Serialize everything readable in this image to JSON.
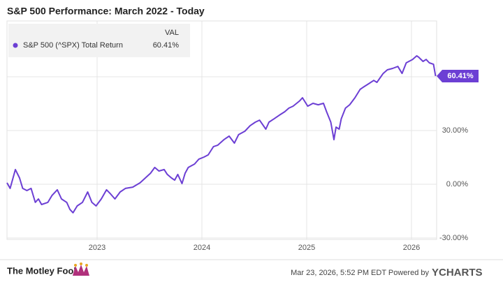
{
  "chart_data": {
    "type": "line",
    "title": "S&P 500 Performance: March 2022 - Today",
    "legend_header": "VAL",
    "last_value_label": "60.41%",
    "footer_brand": "The Motley Fool",
    "footer_timestamp": "Mar 23, 2026, 5:52 PM EDT Powered by",
    "footer_source": "YCHARTS",
    "xlim": [
      2022.14,
      2026.24
    ],
    "xticks": [
      2023,
      2024,
      2025,
      2026
    ],
    "ylim": [
      -30.8,
      91.2
    ],
    "yticks": [
      {
        "value": 30,
        "label": "30.00%"
      },
      {
        "value": 0,
        "label": "0.00%"
      },
      {
        "value": -30,
        "label": "-30.00%"
      }
    ],
    "gridlines": [
      -30,
      0,
      30,
      60
    ],
    "grid": true,
    "series": [
      {
        "name": "S&P 500 (^SPX) Total Return",
        "color": "#6c3fd4",
        "x": [
          2022.14,
          2022.17,
          2022.22,
          2022.26,
          2022.29,
          2022.33,
          2022.37,
          2022.41,
          2022.44,
          2022.47,
          2022.53,
          2022.57,
          2022.62,
          2022.66,
          2022.71,
          2022.74,
          2022.77,
          2022.81,
          2022.86,
          2022.91,
          2022.95,
          2022.99,
          2023.04,
          2023.09,
          2023.13,
          2023.17,
          2023.22,
          2023.27,
          2023.34,
          2023.41,
          2023.46,
          2023.51,
          2023.55,
          2023.59,
          2023.64,
          2023.67,
          2023.71,
          2023.74,
          2023.77,
          2023.81,
          2023.84,
          2023.87,
          2023.93,
          2023.97,
          2024.02,
          2024.06,
          2024.11,
          2024.15,
          2024.21,
          2024.26,
          2024.31,
          2024.35,
          2024.41,
          2024.46,
          2024.51,
          2024.55,
          2024.61,
          2024.64,
          2024.69,
          2024.74,
          2024.79,
          2024.83,
          2024.87,
          2024.93,
          2024.96,
          2025.01,
          2025.06,
          2025.11,
          2025.16,
          2025.19,
          2025.23,
          2025.26,
          2025.28,
          2025.31,
          2025.33,
          2025.37,
          2025.41,
          2025.46,
          2025.51,
          2025.54,
          2025.59,
          2025.64,
          2025.67,
          2025.73,
          2025.77,
          2025.82,
          2025.87,
          2025.91,
          2025.95,
          2026.01,
          2026.05,
          2026.07,
          2026.11,
          2026.14,
          2026.17,
          2026.21,
          2026.23
        ],
        "values": [
          0.8,
          -2.3,
          8.2,
          3.5,
          -2.3,
          -3.5,
          -2.3,
          -10.1,
          -8.2,
          -11.3,
          -10.1,
          -6.2,
          -3.1,
          -8.2,
          -10.1,
          -14.0,
          -15.9,
          -12.1,
          -10.1,
          -4.3,
          -10.1,
          -12.1,
          -8.2,
          -3.1,
          -5.5,
          -8.2,
          -4.3,
          -2.3,
          -1.6,
          0.8,
          3.5,
          6.2,
          9.4,
          7.4,
          8.2,
          5.5,
          3.5,
          2.3,
          5.5,
          0.4,
          6.2,
          9.4,
          11.3,
          14.0,
          15.2,
          16.4,
          21.0,
          21.8,
          24.9,
          26.9,
          23.0,
          27.7,
          29.6,
          32.7,
          34.7,
          35.8,
          30.8,
          34.7,
          36.6,
          38.6,
          40.5,
          42.5,
          43.6,
          46.4,
          48.3,
          43.6,
          45.2,
          44.4,
          45.2,
          40.5,
          34.7,
          24.9,
          31.9,
          30.8,
          36.6,
          42.5,
          44.4,
          48.3,
          53.0,
          54.2,
          56.1,
          58.0,
          56.9,
          61.9,
          63.9,
          64.7,
          65.8,
          61.9,
          67.8,
          69.7,
          71.7,
          70.9,
          68.6,
          69.7,
          67.8,
          67.0,
          60.41
        ]
      }
    ]
  }
}
